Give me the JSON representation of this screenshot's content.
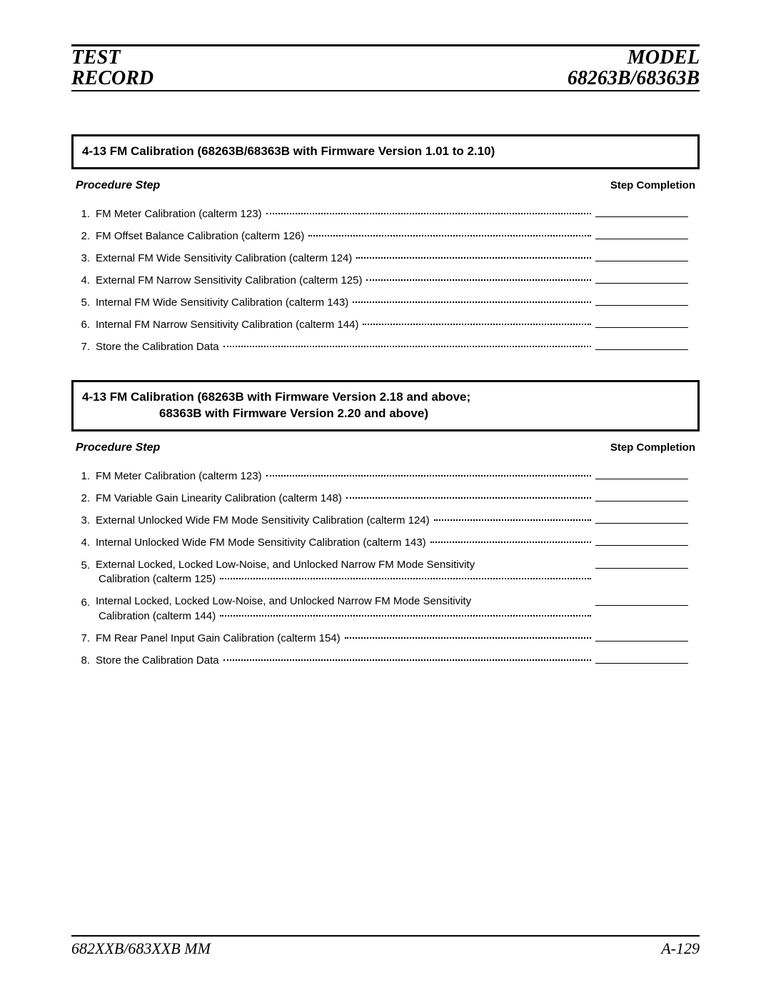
{
  "header": {
    "left_line1": "TEST",
    "left_line2": "RECORD",
    "right_line1": "MODEL",
    "right_line2": "68263B/68363B"
  },
  "sections": [
    {
      "title_line1": "4-13 FM Calibration (68263B/68363B with Firmware Version 1.01 to 2.10)",
      "title_line2": "",
      "ph_left": "Procedure Step",
      "ph_right": "Step Completion",
      "steps": [
        {
          "n": "1.",
          "t": "FM Meter Calibration (calterm 123)"
        },
        {
          "n": "2.",
          "t": "FM Offset Balance Calibration (calterm 126)"
        },
        {
          "n": "3.",
          "t": "External FM Wide Sensitivity Calibration (calterm 124)"
        },
        {
          "n": "4.",
          "t": "External FM Narrow Sensitivity Calibration (calterm 125)"
        },
        {
          "n": "5.",
          "t": "Internal FM Wide Sensitivity Calibration (calterm 143)"
        },
        {
          "n": "6.",
          "t": "Internal FM Narrow Sensitivity Calibration (calterm 144)"
        },
        {
          "n": "7.",
          "t": "Store the Calibration Data"
        }
      ]
    },
    {
      "title_line1": "4-13 FM Calibration (68263B with Firmware Version 2.18 and above;",
      "title_line2": "68363B with Firmware Version 2.20 and above)",
      "ph_left": "Procedure Step",
      "ph_right": "Step Completion",
      "steps": [
        {
          "n": "1.",
          "t": "FM Meter Calibration (calterm 123)"
        },
        {
          "n": "2.",
          "t": "FM Variable Gain Linearity Calibration (calterm 148)"
        },
        {
          "n": "3.",
          "t": "External Unlocked Wide FM Mode Sensitivity Calibration (calterm 124)"
        },
        {
          "n": "4.",
          "t": "Internal Unlocked Wide FM Mode Sensitivity Calibration (calterm 143)"
        },
        {
          "n": "5.",
          "t": "External Locked, Locked Low-Noise, and Unlocked Narrow FM Mode Sensitivity",
          "t2": "Calibration (calterm 125)"
        },
        {
          "n": "6.",
          "t": "Internal Locked, Locked Low-Noise, and Unlocked Narrow FM Mode Sensitivity",
          "t2": "Calibration (calterm 144)"
        },
        {
          "n": "7.",
          "t": "FM Rear Panel Input Gain Calibration (calterm 154)"
        },
        {
          "n": "8.",
          "t": "Store the Calibration Data"
        }
      ]
    }
  ],
  "footer": {
    "left": "682XXB/683XXB MM",
    "right": "A-129"
  },
  "colors": {
    "text": "#000000",
    "bg": "#ffffff",
    "rule": "#000000"
  },
  "typography": {
    "header_font": "Times New Roman italic bold",
    "header_size_pt": 21,
    "body_font": "Arial/Helvetica",
    "section_title_size_pt": 13,
    "step_size_pt": 11,
    "footer_size_pt": 16
  }
}
